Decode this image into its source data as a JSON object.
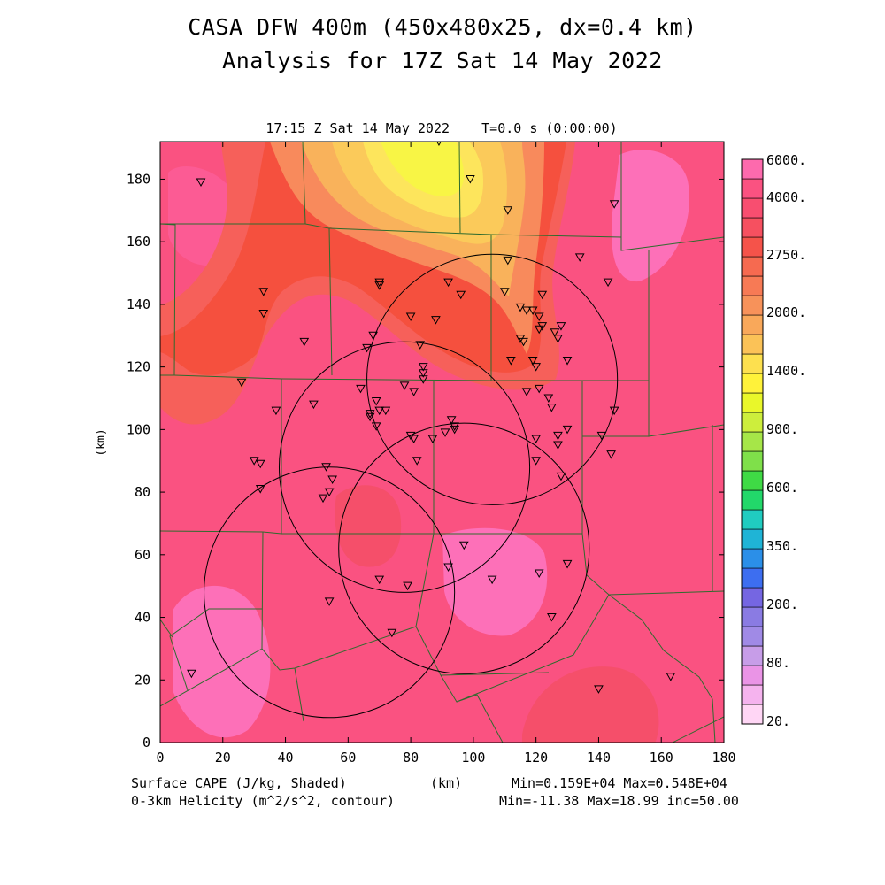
{
  "title_line1": "CASA DFW 400m (450x480x25, dx=0.4 km)",
  "title_line2": "Analysis for 17Z Sat 14 May 2022",
  "valid_time": "17:15 Z Sat 14 May 2022    T=0.0 s (0:00:00)",
  "x_axis": {
    "label": "(km)",
    "ticks": [
      "0",
      "20",
      "40",
      "60",
      "80",
      "100",
      "120",
      "140",
      "160",
      "180"
    ],
    "range": [
      0,
      180
    ]
  },
  "y_axis": {
    "label": "(km)",
    "ticks": [
      "0",
      "20",
      "40",
      "60",
      "80",
      "100",
      "120",
      "140",
      "160",
      "180"
    ],
    "range": [
      0,
      192
    ]
  },
  "footer": {
    "field1": "Surface CAPE (J/kg, Shaded)",
    "field2": "0-3km Helicity (m^2/s^2, contour)",
    "unit": "(km)",
    "stats1": "Min=0.159E+04 Max=0.548E+04",
    "stats2": "Min=-11.38 Max=18.99 inc=50.00"
  },
  "colorbar": {
    "labels": [
      "6000.",
      "4000.",
      "2750.",
      "2000.",
      "1400.",
      "900.",
      "600.",
      "350.",
      "200.",
      "80.",
      "20."
    ],
    "colors": [
      "#ffd6f5",
      "#f5b3ee",
      "#ea94e6",
      "#c79de8",
      "#a08ae6",
      "#8a7be3",
      "#7566e2",
      "#3d6ef0",
      "#2b8fe8",
      "#1fb4d6",
      "#20ccc0",
      "#22d86a",
      "#3fda45",
      "#7fe04a",
      "#a6e648",
      "#cdee3c",
      "#e9f72a",
      "#fff23a",
      "#fde04f",
      "#fbc257",
      "#f9a85a",
      "#f7925a",
      "#f77a55",
      "#f66a50",
      "#f5534a",
      "#f65060",
      "#f84e70",
      "#fa5281",
      "#fd6aad"
    ]
  },
  "cape_field": {
    "background": "#fa5281",
    "areas": [
      {
        "level": "4000-4500",
        "color": "#fc5b94"
      },
      {
        "level": "3000-3500",
        "color": "#f7795a"
      },
      {
        "level": "2750-3000",
        "color": "#f88a5c"
      },
      {
        "level": "2250-2500",
        "color": "#f9b25b"
      },
      {
        "level": "2000-2250",
        "color": "#fbca5a"
      },
      {
        "level": "1600-2000",
        "color": "#fde55c"
      },
      {
        "level": "1400-1600",
        "color": "#f9f53f"
      },
      {
        "level": "5000-6000",
        "color": "#fd70b8"
      },
      {
        "level": "3500-4000",
        "color": "#f55050"
      }
    ]
  },
  "radars": [
    {
      "name": "radar-ring-north",
      "center": [
        106,
        116
      ],
      "radius_km": 40
    },
    {
      "name": "radar-ring-west",
      "center": [
        78,
        88
      ],
      "radius_km": 40
    },
    {
      "name": "radar-ring-center",
      "center": [
        97,
        62
      ],
      "radius_km": 40
    },
    {
      "name": "radar-ring-southwest",
      "center": [
        54,
        48
      ],
      "radius_km": 40
    }
  ],
  "stations": [
    [
      13,
      179
    ],
    [
      89,
      192
    ],
    [
      99,
      180
    ],
    [
      111,
      170
    ],
    [
      145,
      172
    ],
    [
      134,
      155
    ],
    [
      111,
      154
    ],
    [
      143,
      147
    ],
    [
      33,
      144
    ],
    [
      70,
      147
    ],
    [
      70,
      146
    ],
    [
      92,
      147
    ],
    [
      96,
      143
    ],
    [
      110,
      144
    ],
    [
      122,
      143
    ],
    [
      33,
      137
    ],
    [
      80,
      136
    ],
    [
      88,
      135
    ],
    [
      115,
      139
    ],
    [
      117,
      138
    ],
    [
      119,
      138
    ],
    [
      121,
      136
    ],
    [
      128,
      133
    ],
    [
      121,
      132
    ],
    [
      122,
      133
    ],
    [
      126,
      131
    ],
    [
      46,
      128
    ],
    [
      66,
      126
    ],
    [
      68,
      130
    ],
    [
      83,
      127
    ],
    [
      115,
      129
    ],
    [
      116,
      128
    ],
    [
      127,
      129
    ],
    [
      112,
      122
    ],
    [
      119,
      122
    ],
    [
      130,
      122
    ],
    [
      84,
      120
    ],
    [
      84,
      118
    ],
    [
      120,
      120
    ],
    [
      26,
      115
    ],
    [
      64,
      113
    ],
    [
      78,
      114
    ],
    [
      84,
      116
    ],
    [
      81,
      112
    ],
    [
      121,
      113
    ],
    [
      117,
      112
    ],
    [
      124,
      110
    ],
    [
      37,
      106
    ],
    [
      69,
      109
    ],
    [
      70,
      106
    ],
    [
      72,
      106
    ],
    [
      67,
      105
    ],
    [
      67,
      104
    ],
    [
      69,
      101
    ],
    [
      49,
      108
    ],
    [
      93,
      103
    ],
    [
      94,
      100
    ],
    [
      94,
      101
    ],
    [
      125,
      107
    ],
    [
      145,
      106
    ],
    [
      80,
      98
    ],
    [
      81,
      97
    ],
    [
      87,
      97
    ],
    [
      91,
      99
    ],
    [
      120,
      97
    ],
    [
      127,
      98
    ],
    [
      141,
      98
    ],
    [
      130,
      100
    ],
    [
      127,
      95
    ],
    [
      144,
      92
    ],
    [
      30,
      90
    ],
    [
      32,
      89
    ],
    [
      82,
      90
    ],
    [
      120,
      90
    ],
    [
      128,
      85
    ],
    [
      32,
      81
    ],
    [
      53,
      88
    ],
    [
      55,
      84
    ],
    [
      54,
      80
    ],
    [
      52,
      78
    ],
    [
      97,
      63
    ],
    [
      130,
      57
    ],
    [
      121,
      54
    ],
    [
      106,
      52
    ],
    [
      92,
      56
    ],
    [
      70,
      52
    ],
    [
      79,
      50
    ],
    [
      54,
      45
    ],
    [
      125,
      40
    ],
    [
      74,
      35
    ],
    [
      10,
      22
    ],
    [
      140,
      17
    ],
    [
      163,
      21
    ]
  ],
  "helicity_min_label": "",
  "boundaries_color": "#2e6b2e"
}
